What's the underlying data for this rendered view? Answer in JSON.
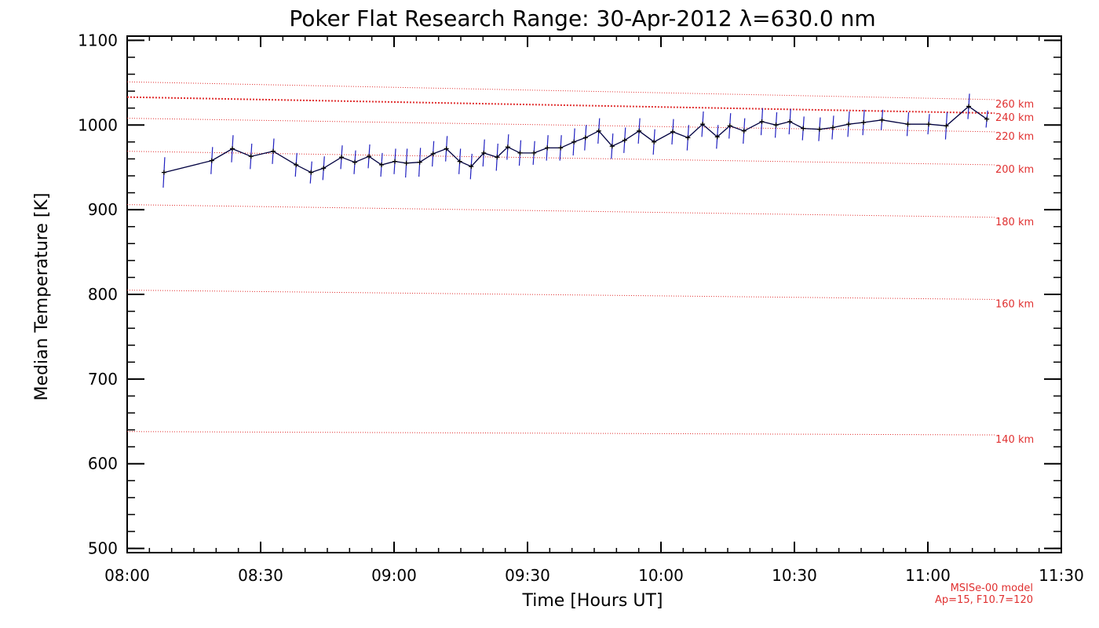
{
  "chart_data": {
    "type": "line",
    "title": "Poker Flat Research Range: 30-Apr-2012 λ=630.0 nm",
    "xlabel": "Time [Hours UT]",
    "ylabel": "Median Temperature [K]",
    "xlim": [
      8.0,
      11.5
    ],
    "ylim": [
      495,
      1105
    ],
    "x_ticks": [
      {
        "value": 8.0,
        "label": "08:00"
      },
      {
        "value": 8.5,
        "label": "08:30"
      },
      {
        "value": 9.0,
        "label": "09:00"
      },
      {
        "value": 9.5,
        "label": "09:30"
      },
      {
        "value": 10.0,
        "label": "10:00"
      },
      {
        "value": 10.5,
        "label": "10:30"
      },
      {
        "value": 11.0,
        "label": "11:00"
      },
      {
        "value": 11.5,
        "label": "11:30"
      }
    ],
    "y_ticks": [
      500,
      600,
      700,
      800,
      900,
      1000,
      1100
    ],
    "grid": false,
    "series": [
      {
        "color": "#000040",
        "error_color": "#2020c0",
        "x": [
          8.138,
          8.317,
          8.394,
          8.464,
          8.547,
          8.633,
          8.689,
          8.736,
          8.803,
          8.853,
          8.906,
          8.953,
          9.003,
          9.046,
          9.096,
          9.146,
          9.196,
          9.246,
          9.289,
          9.336,
          9.386,
          9.426,
          9.472,
          9.524,
          9.574,
          9.624,
          9.674,
          9.717,
          9.767,
          9.817,
          9.864,
          9.918,
          9.974,
          10.044,
          10.101,
          10.156,
          10.211,
          10.258,
          10.311,
          10.378,
          10.431,
          10.483,
          10.533,
          10.594,
          10.644,
          10.703,
          10.759,
          10.828,
          10.925,
          11.003,
          11.069,
          11.153,
          11.221
        ],
        "y": [
          944,
          958,
          972,
          963,
          969,
          953,
          944,
          949,
          962,
          956,
          963,
          953,
          957,
          955,
          956,
          966,
          972,
          957,
          951,
          967,
          962,
          974,
          967,
          967,
          973,
          973,
          980,
          985,
          993,
          975,
          982,
          993,
          980,
          992,
          985,
          1001,
          986,
          999,
          993,
          1004,
          1000,
          1004,
          996,
          995,
          997,
          1001,
          1003,
          1006,
          1001,
          1001,
          999,
          1022,
          1007
        ],
        "yerr": [
          18,
          16,
          16,
          15,
          15,
          14,
          13,
          14,
          14,
          14,
          14,
          14,
          15,
          17,
          17,
          15,
          15,
          15,
          15,
          16,
          16,
          15,
          15,
          14,
          15,
          15,
          16,
          15,
          15,
          15,
          15,
          15,
          15,
          15,
          15,
          15,
          14,
          15,
          15,
          16,
          15,
          15,
          14,
          14,
          14,
          15,
          15,
          12,
          14,
          12,
          16,
          15,
          10
        ]
      }
    ],
    "model_lines": [
      {
        "label": "140 km",
        "y_start": 638,
        "y_end": 634
      },
      {
        "label": "160 km",
        "y_start": 805,
        "y_end": 794
      },
      {
        "label": "180 km",
        "y_start": 906,
        "y_end": 891
      },
      {
        "label": "200 km",
        "y_start": 969,
        "y_end": 953
      },
      {
        "label": "220 km",
        "y_start": 1008,
        "y_end": 992
      },
      {
        "label": "240 km",
        "y_start": 1033,
        "y_end": 1014
      },
      {
        "label": "260 km",
        "y_start": 1051,
        "y_end": 1030
      }
    ],
    "annotation": [
      "MSISe-00 model",
      "Ap=15, F10.7=120"
    ],
    "colors": {
      "model": "#e03030",
      "line": "#000040",
      "error": "#2020c0",
      "axes": "#000000"
    }
  }
}
